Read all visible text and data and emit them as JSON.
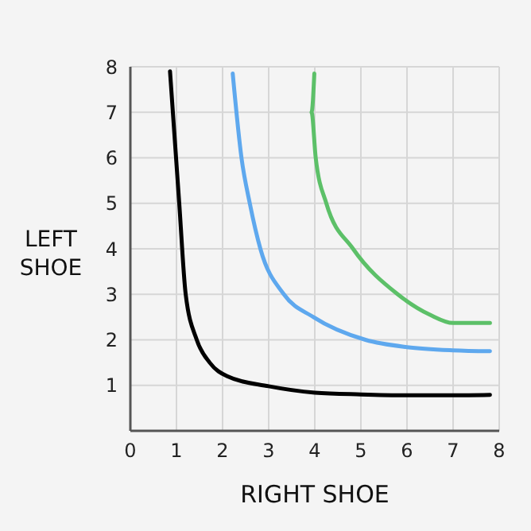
{
  "chart_data": {
    "type": "line",
    "xlabel": "RIGHT SHOE",
    "ylabel": "LEFT SHOE",
    "xlim": [
      0,
      8
    ],
    "ylim": [
      0,
      8
    ],
    "xticks": [
      0,
      1,
      2,
      3,
      4,
      5,
      6,
      7,
      8
    ],
    "yticks": [
      1,
      2,
      3,
      4,
      5,
      6,
      7,
      8
    ],
    "grid": true,
    "series": [
      {
        "color": "#000000",
        "x": [
          0.86,
          1.06,
          1.2,
          1.44,
          1.72,
          2.1,
          3,
          4,
          5,
          6,
          7,
          7.8
        ],
        "values": [
          7.9,
          5,
          3,
          2,
          1.5,
          1.2,
          0.98,
          0.84,
          0.8,
          0.78,
          0.78,
          0.79
        ]
      },
      {
        "color": "#5ea8ee",
        "x": [
          2.22,
          2.41,
          2.59,
          2.82,
          3.33,
          3.97,
          5.1,
          6,
          7,
          7.8
        ],
        "values": [
          7.85,
          6,
          5,
          4,
          3,
          2.5,
          2,
          1.84,
          1.77,
          1.75
        ]
      },
      {
        "color": "#5cc068",
        "x": [
          3.99,
          3.93,
          4.02,
          4.25,
          4.83,
          5.8,
          6.5,
          7,
          7.8
        ],
        "values": [
          7.85,
          7,
          6,
          5,
          4,
          3,
          2.55,
          2.37,
          2.37
        ]
      }
    ]
  }
}
